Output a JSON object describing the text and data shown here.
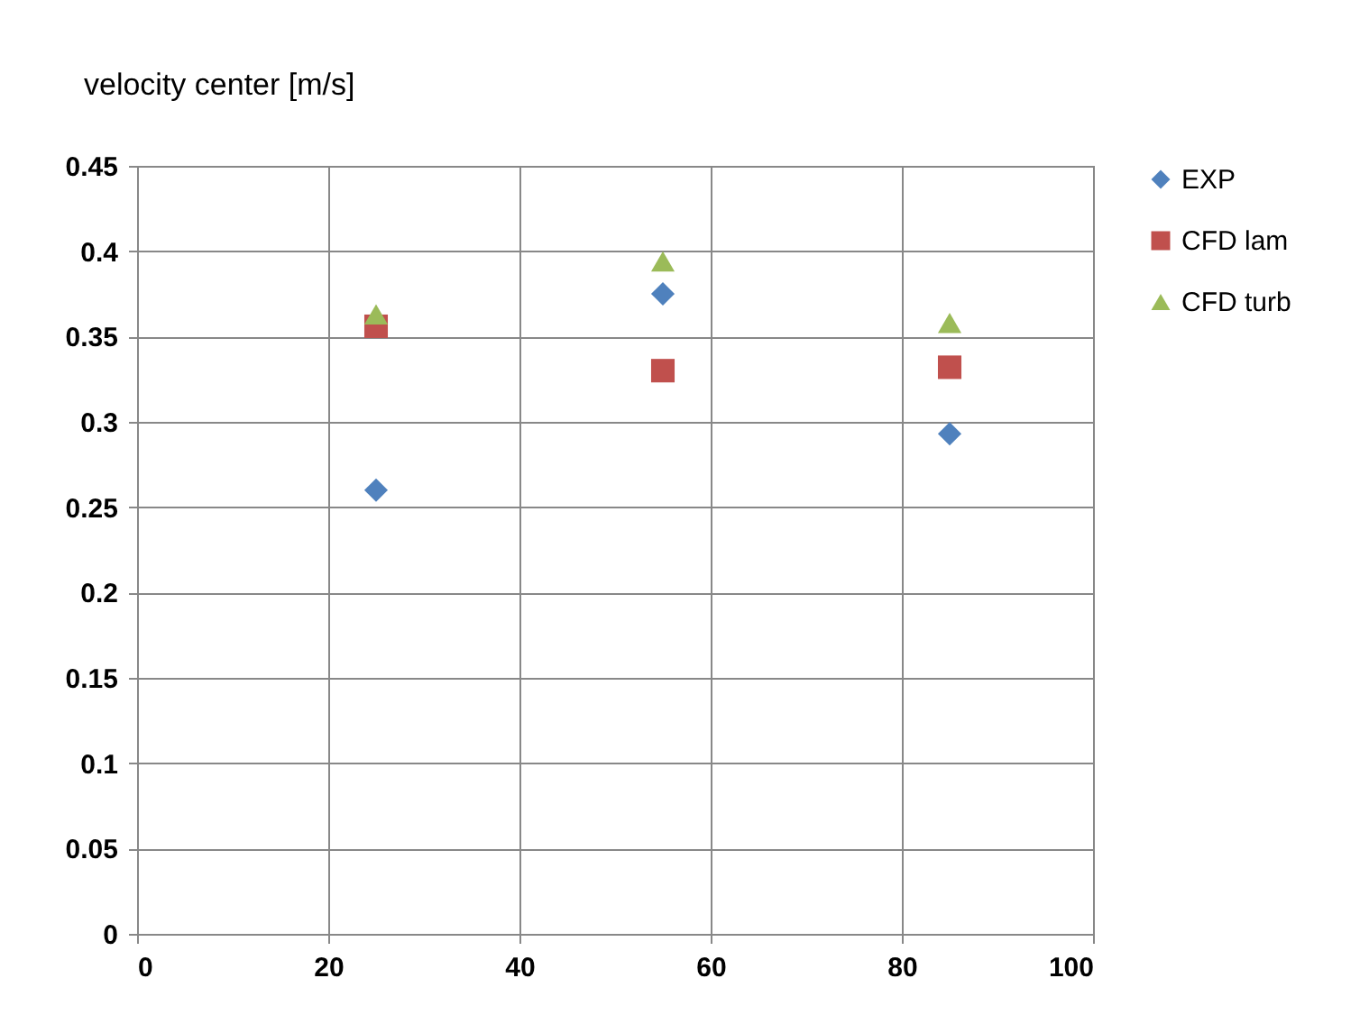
{
  "chart_data": {
    "type": "scatter",
    "ylabel": "velocity  center [m/s]",
    "x": [
      25,
      55,
      85
    ],
    "series": [
      {
        "name": "EXP",
        "color": "#4f81bd",
        "marker": "diamond",
        "values": [
          0.26,
          0.375,
          0.293
        ]
      },
      {
        "name": "CFD lam",
        "color": "#c0504d",
        "marker": "square",
        "values": [
          0.356,
          0.33,
          0.332
        ]
      },
      {
        "name": "CFD turb",
        "color": "#9bbb59",
        "marker": "triangle",
        "values": [
          0.363,
          0.394,
          0.358
        ]
      }
    ],
    "xlim": [
      0,
      100
    ],
    "xticks": [
      0,
      20,
      40,
      60,
      80,
      100
    ],
    "ylim": [
      0,
      0.45
    ],
    "yticks": [
      0,
      0.05,
      0.1,
      0.15,
      0.2,
      0.25,
      0.3,
      0.35,
      0.4,
      0.45
    ],
    "grid": true,
    "legend": "right"
  }
}
